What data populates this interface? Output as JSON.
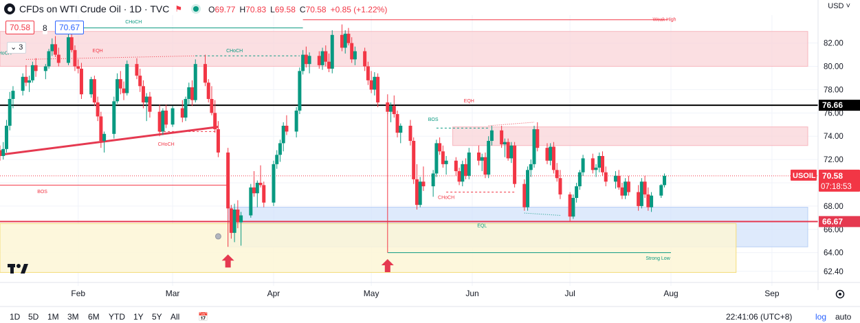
{
  "header": {
    "title": "CFDs on WTI Crude Oil · 1D · TVC",
    "ohlc": [
      {
        "k": "O",
        "v": "69.77"
      },
      {
        "k": "H",
        "v": "70.83"
      },
      {
        "k": "L",
        "v": "69.58"
      },
      {
        "k": "C",
        "v": "70.58"
      },
      {
        "k": "",
        "v": "+0.85 (+1.22%)"
      }
    ],
    "sell_price": "70.58",
    "spread": "8",
    "buy_price": "70.67",
    "layers_count": "3",
    "currency": "USD"
  },
  "colors": {
    "up": "#089981",
    "down": "#f23645",
    "supply_zone": "#f9d4d8",
    "demand_zone": "#d3e3fb",
    "yellow_zone": "#fdf6d6",
    "black_line": "#000000",
    "red_line": "#e53950"
  },
  "bottom_bar": {
    "timeframes": [
      "1D",
      "5D",
      "1M",
      "3M",
      "6M",
      "YTD",
      "1Y",
      "5Y",
      "All"
    ],
    "clock": "22:41:06 (UTC+8)",
    "log": "log",
    "auto": "auto"
  },
  "chart_data": {
    "type": "candlestick",
    "title": "CFDs on WTI Crude Oil · 1D · TVC",
    "symbol": "USOIL",
    "y_ticks": [
      62.4,
      64.0,
      66.0,
      68.0,
      70.0,
      72.0,
      74.0,
      76.0,
      78.0,
      80.0,
      82.0
    ],
    "x_ticks": [
      "Feb",
      "Mar",
      "Apr",
      "May",
      "Jun",
      "Jul",
      "Aug",
      "Sep"
    ],
    "x_tick_dates": [
      "2024-02-01",
      "2024-03-01",
      "2024-04-01",
      "2024-05-01",
      "2024-06-01",
      "2024-07-01",
      "2024-08-01",
      "2024-09-01"
    ],
    "x_range": [
      "2024-01-08",
      "2024-09-12"
    ],
    "y_range": [
      61.5,
      84.4
    ],
    "price_labels": {
      "last_price": "70.58",
      "countdown": "07:18:53",
      "black_level": "76.66",
      "red_level": "66.67"
    },
    "levels": [
      {
        "label": "76.66",
        "value": 76.66,
        "color": "#000000"
      },
      {
        "label": "66.67",
        "value": 66.67,
        "color": "#e53950"
      }
    ],
    "zones": [
      {
        "kind": "supply",
        "from": "2024-01-08",
        "to": "2024-09-12",
        "low": 80.0,
        "high": 83.0
      },
      {
        "kind": "supply",
        "from": "2024-05-26",
        "to": "2024-09-12",
        "low": 73.2,
        "high": 74.8
      },
      {
        "kind": "demand",
        "from": "2024-03-18",
        "to": "2024-09-12",
        "low": 64.5,
        "high": 67.9
      },
      {
        "kind": "yellow",
        "from": "2024-01-08",
        "to": "2024-08-21",
        "low": 62.3,
        "high": 66.5
      }
    ],
    "annotations": [
      {
        "text": "CHoCH",
        "date": "2024-02-18",
        "value": 83.7,
        "color": "#089981"
      },
      {
        "text": "EQH",
        "date": "2024-02-07",
        "value": 81.2,
        "color": "#f23645"
      },
      {
        "text": "CHoCH",
        "date": "2024-03-20",
        "value": 81.2,
        "color": "#089981"
      },
      {
        "text": "Weak High",
        "date": "2024-07-30",
        "value": 83.9,
        "color": "#f23645"
      },
      {
        "text": "CHoCH",
        "date": "2024-02-28",
        "value": 73.2,
        "color": "#f23645"
      },
      {
        "text": "BOS",
        "date": "2024-01-21",
        "value": 69.1,
        "color": "#f23645"
      },
      {
        "text": "BOS",
        "date": "2024-05-20",
        "value": 75.3,
        "color": "#089981"
      },
      {
        "text": "EQH",
        "date": "2024-05-31",
        "value": 76.9,
        "color": "#f23645"
      },
      {
        "text": "CHoCH",
        "date": "2024-05-24",
        "value": 68.6,
        "color": "#f23645"
      },
      {
        "text": "EQL",
        "date": "2024-06-04",
        "value": 66.2,
        "color": "#089981"
      },
      {
        "text": "Strong Low",
        "date": "2024-07-28",
        "value": 63.4,
        "color": "#089981"
      },
      {
        "text": "CHoCH",
        "date": "2024-01-09",
        "value": 81.0,
        "color": "#089981"
      }
    ],
    "arrows": [
      {
        "date": "2024-03-18",
        "value": 63.2
      },
      {
        "date": "2024-05-06",
        "value": 62.8
      }
    ],
    "trendlines": [
      {
        "points": [
          [
            "2024-01-08",
            72.4
          ],
          [
            "2024-03-15",
            74.8
          ]
        ],
        "color": "#e53950"
      }
    ],
    "candles": [
      [
        "2024-01-08",
        72.8,
        73.2,
        71.9,
        72.3
      ],
      [
        "2024-01-09",
        72.3,
        73.5,
        72.0,
        72.9
      ],
      [
        "2024-01-10",
        72.9,
        75.4,
        72.6,
        74.9
      ],
      [
        "2024-01-11",
        74.9,
        77.8,
        74.5,
        77.2
      ],
      [
        "2024-01-12",
        77.2,
        78.3,
        76.4,
        77.9
      ],
      [
        "2024-01-15",
        77.9,
        79.4,
        77.5,
        79.1
      ],
      [
        "2024-01-16",
        79.1,
        80.1,
        78.3,
        78.6
      ],
      [
        "2024-01-17",
        78.6,
        79.2,
        77.8,
        78.8
      ],
      [
        "2024-01-18",
        78.8,
        80.4,
        78.6,
        80.1
      ],
      [
        "2024-01-19",
        80.1,
        80.7,
        79.1,
        79.6
      ],
      [
        "2024-01-22",
        79.6,
        80.2,
        78.9,
        80.0
      ],
      [
        "2024-01-23",
        80.0,
        81.5,
        79.8,
        81.3
      ],
      [
        "2024-01-24",
        81.3,
        82.4,
        80.9,
        81.9
      ],
      [
        "2024-01-25",
        81.9,
        82.6,
        80.8,
        81.0
      ],
      [
        "2024-01-26",
        81.0,
        81.6,
        80.0,
        80.3
      ],
      [
        "2024-01-29",
        80.3,
        82.9,
        80.1,
        82.5
      ],
      [
        "2024-01-30",
        82.5,
        82.8,
        81.2,
        81.4
      ],
      [
        "2024-01-31",
        81.4,
        81.8,
        79.6,
        80.0
      ],
      [
        "2024-02-01",
        80.0,
        80.6,
        79.4,
        79.8
      ],
      [
        "2024-02-02",
        79.8,
        80.3,
        77.2,
        77.6
      ],
      [
        "2024-02-05",
        77.6,
        79.1,
        77.3,
        78.9
      ],
      [
        "2024-02-06",
        78.9,
        79.2,
        76.6,
        76.9
      ],
      [
        "2024-02-07",
        76.9,
        77.4,
        75.3,
        75.7
      ],
      [
        "2024-02-08",
        75.7,
        76.1,
        73.0,
        73.6
      ],
      [
        "2024-02-09",
        73.6,
        74.4,
        72.6,
        74.2
      ],
      [
        "2024-02-12",
        74.2,
        77.4,
        73.8,
        77.0
      ],
      [
        "2024-02-13",
        77.0,
        79.4,
        76.8,
        78.9
      ],
      [
        "2024-02-14",
        78.9,
        79.6,
        77.6,
        78.1
      ],
      [
        "2024-02-15",
        78.1,
        78.7,
        77.1,
        77.7
      ],
      [
        "2024-02-16",
        77.7,
        80.5,
        77.5,
        80.2
      ],
      [
        "2024-02-19",
        80.2,
        80.7,
        78.9,
        79.2
      ],
      [
        "2024-02-20",
        79.2,
        79.8,
        77.8,
        78.3
      ],
      [
        "2024-02-21",
        78.3,
        78.8,
        76.4,
        76.9
      ],
      [
        "2024-02-22",
        76.9,
        77.7,
        75.3,
        77.4
      ],
      [
        "2024-02-23",
        77.4,
        77.8,
        75.6,
        76.1
      ],
      [
        "2024-02-26",
        76.1,
        76.7,
        74.0,
        74.4
      ],
      [
        "2024-02-27",
        74.4,
        76.4,
        74.1,
        76.2
      ],
      [
        "2024-02-28",
        76.2,
        76.7,
        74.7,
        75.0
      ],
      [
        "2024-03-01",
        75.0,
        76.6,
        74.8,
        76.4
      ],
      [
        "2024-03-04",
        76.4,
        77.1,
        75.2,
        75.6
      ],
      [
        "2024-03-05",
        75.6,
        77.4,
        75.3,
        77.2
      ],
      [
        "2024-03-06",
        77.2,
        78.6,
        76.7,
        78.2
      ],
      [
        "2024-03-07",
        78.2,
        78.8,
        76.6,
        77.1
      ],
      [
        "2024-03-08",
        77.1,
        80.6,
        76.9,
        80.2
      ],
      [
        "2024-03-11",
        80.2,
        81.0,
        78.3,
        78.6
      ],
      [
        "2024-03-12",
        78.6,
        78.9,
        76.9,
        77.2
      ],
      [
        "2024-03-13",
        77.2,
        78.3,
        75.8,
        76.0
      ],
      [
        "2024-03-14",
        76.0,
        77.1,
        74.3,
        74.6
      ],
      [
        "2024-03-15",
        74.6,
        75.3,
        72.2,
        72.6
      ],
      [
        "2024-03-18",
        72.6,
        73.0,
        67.3,
        67.8
      ],
      [
        "2024-03-19",
        67.8,
        68.1,
        65.2,
        65.7
      ],
      [
        "2024-03-20",
        65.7,
        68.2,
        64.9,
        67.7
      ],
      [
        "2024-03-21",
        67.7,
        68.5,
        66.1,
        66.6
      ],
      [
        "2024-03-22",
        66.6,
        67.5,
        64.6,
        67.2
      ],
      [
        "2024-03-25",
        67.2,
        69.9,
        67.0,
        69.6
      ],
      [
        "2024-03-26",
        69.6,
        71.0,
        68.8,
        69.1
      ],
      [
        "2024-03-27",
        69.1,
        70.2,
        67.9,
        70.0
      ],
      [
        "2024-03-28",
        70.0,
        71.5,
        69.6,
        69.8
      ],
      [
        "2024-03-29",
        69.8,
        70.1,
        67.9,
        68.3
      ],
      [
        "2024-04-01",
        68.3,
        71.9,
        68.0,
        71.6
      ],
      [
        "2024-04-02",
        71.6,
        72.8,
        71.2,
        72.4
      ],
      [
        "2024-04-03",
        72.4,
        73.7,
        71.8,
        73.4
      ],
      [
        "2024-04-04",
        73.4,
        75.2,
        72.7,
        74.9
      ],
      [
        "2024-04-05",
        74.9,
        75.8,
        74.1,
        74.4
      ],
      [
        "2024-04-08",
        74.4,
        76.5,
        73.9,
        76.2
      ],
      [
        "2024-04-09",
        76.2,
        79.9,
        75.9,
        79.6
      ],
      [
        "2024-04-10",
        79.6,
        81.4,
        79.3,
        81.0
      ],
      [
        "2024-04-11",
        81.0,
        81.7,
        79.9,
        80.2
      ],
      [
        "2024-04-12",
        80.2,
        81.2,
        79.4,
        80.9
      ],
      [
        "2024-04-15",
        80.9,
        81.3,
        79.8,
        80.1
      ],
      [
        "2024-04-16",
        80.1,
        81.6,
        79.7,
        81.3
      ],
      [
        "2024-04-17",
        81.3,
        81.8,
        80.0,
        80.4
      ],
      [
        "2024-04-18",
        80.4,
        81.1,
        79.5,
        79.8
      ],
      [
        "2024-04-19",
        79.8,
        83.1,
        79.4,
        82.7
      ],
      [
        "2024-04-22",
        82.7,
        83.6,
        81.3,
        81.6
      ],
      [
        "2024-04-23",
        81.6,
        83.1,
        81.1,
        82.8
      ],
      [
        "2024-04-24",
        82.8,
        83.3,
        81.8,
        82.0
      ],
      [
        "2024-04-25",
        82.0,
        82.5,
        80.3,
        80.6
      ],
      [
        "2024-04-26",
        80.6,
        81.7,
        80.1,
        81.3
      ],
      [
        "2024-04-29",
        81.3,
        81.6,
        79.6,
        80.0
      ],
      [
        "2024-04-30",
        80.0,
        80.4,
        78.4,
        78.8
      ],
      [
        "2024-05-01",
        78.8,
        79.6,
        77.7,
        78.0
      ],
      [
        "2024-05-02",
        78.0,
        79.5,
        77.5,
        79.1
      ],
      [
        "2024-05-03",
        79.1,
        79.4,
        76.5,
        76.9
      ],
      [
        "2024-05-06",
        76.9,
        77.6,
        75.9,
        76.1
      ],
      [
        "2024-05-07",
        76.1,
        76.9,
        75.2,
        76.6
      ],
      [
        "2024-05-08",
        76.6,
        77.5,
        75.6,
        75.9
      ],
      [
        "2024-05-09",
        75.9,
        76.2,
        73.9,
        74.3
      ],
      [
        "2024-05-10",
        74.3,
        75.1,
        73.4,
        74.9
      ],
      [
        "2024-05-13",
        74.9,
        75.4,
        73.2,
        73.6
      ],
      [
        "2024-05-14",
        73.6,
        73.9,
        69.9,
        70.3
      ],
      [
        "2024-05-15",
        70.3,
        71.6,
        67.7,
        68.1
      ],
      [
        "2024-05-16",
        68.1,
        70.5,
        67.9,
        70.1
      ],
      [
        "2024-05-17",
        70.1,
        71.4,
        69.3,
        69.7
      ],
      [
        "2024-05-20",
        69.7,
        71.1,
        68.8,
        70.8
      ],
      [
        "2024-05-21",
        70.8,
        73.7,
        70.5,
        73.4
      ],
      [
        "2024-05-22",
        73.4,
        73.9,
        72.4,
        72.7
      ],
      [
        "2024-05-23",
        72.7,
        73.2,
        71.3,
        71.6
      ],
      [
        "2024-05-24",
        71.6,
        72.3,
        70.7,
        71.9
      ],
      [
        "2024-05-27",
        71.9,
        72.2,
        70.6,
        71.0
      ],
      [
        "2024-05-28",
        71.0,
        71.3,
        69.8,
        70.1
      ],
      [
        "2024-05-29",
        70.1,
        71.9,
        69.7,
        71.6
      ],
      [
        "2024-05-30",
        71.6,
        72.1,
        70.3,
        70.6
      ],
      [
        "2024-05-31",
        70.6,
        73.0,
        70.3,
        72.6
      ],
      [
        "2024-06-03",
        72.6,
        73.2,
        71.5,
        71.9
      ],
      [
        "2024-06-04",
        71.9,
        72.5,
        71.0,
        72.2
      ],
      [
        "2024-06-05",
        72.2,
        72.6,
        70.4,
        70.7
      ],
      [
        "2024-06-06",
        70.7,
        74.0,
        70.4,
        73.6
      ],
      [
        "2024-06-07",
        73.6,
        74.9,
        73.2,
        74.5
      ],
      [
        "2024-06-10",
        74.5,
        74.9,
        73.0,
        73.3
      ],
      [
        "2024-06-11",
        73.3,
        73.8,
        72.2,
        73.5
      ],
      [
        "2024-06-12",
        73.5,
        73.8,
        71.9,
        72.1
      ],
      [
        "2024-06-13",
        72.1,
        73.5,
        71.7,
        73.2
      ],
      [
        "2024-06-14",
        73.2,
        73.5,
        69.6,
        69.9
      ],
      [
        "2024-06-17",
        69.9,
        70.3,
        67.6,
        67.9
      ],
      [
        "2024-06-18",
        67.9,
        71.4,
        67.6,
        71.1
      ],
      [
        "2024-06-19",
        71.1,
        72.0,
        70.5,
        71.6
      ],
      [
        "2024-06-20",
        71.6,
        74.9,
        71.3,
        74.6
      ],
      [
        "2024-06-21",
        74.6,
        75.2,
        72.7,
        73.0
      ],
      [
        "2024-06-24",
        73.0,
        73.4,
        71.6,
        71.9
      ],
      [
        "2024-06-25",
        71.9,
        73.4,
        71.5,
        73.1
      ],
      [
        "2024-06-26",
        73.1,
        73.5,
        70.8,
        71.1
      ],
      [
        "2024-06-27",
        71.1,
        71.7,
        70.1,
        70.4
      ],
      [
        "2024-06-28",
        70.4,
        71.1,
        68.6,
        69.0
      ],
      [
        "2024-07-01",
        69.0,
        69.2,
        66.7,
        67.1
      ],
      [
        "2024-07-02",
        67.1,
        69.0,
        66.9,
        68.7
      ],
      [
        "2024-07-03",
        68.7,
        70.0,
        68.3,
        69.7
      ],
      [
        "2024-07-04",
        69.7,
        71.1,
        69.4,
        70.9
      ],
      [
        "2024-07-05",
        70.9,
        72.4,
        70.6,
        72.1
      ],
      [
        "2024-07-08",
        72.1,
        72.5,
        70.8,
        71.1
      ],
      [
        "2024-07-09",
        71.1,
        71.6,
        70.5,
        71.3
      ],
      [
        "2024-07-10",
        71.3,
        72.6,
        70.9,
        72.3
      ],
      [
        "2024-07-11",
        72.3,
        72.7,
        70.6,
        70.9
      ],
      [
        "2024-07-12",
        70.9,
        71.4,
        69.7,
        70.1
      ],
      [
        "2024-07-15",
        70.1,
        71.0,
        69.5,
        70.6
      ],
      [
        "2024-07-16",
        70.6,
        71.1,
        69.4,
        69.6
      ],
      [
        "2024-07-17",
        69.6,
        70.0,
        68.6,
        68.9
      ],
      [
        "2024-07-18",
        68.9,
        70.4,
        68.6,
        70.1
      ],
      [
        "2024-07-19",
        70.1,
        70.6,
        68.9,
        69.2
      ],
      [
        "2024-07-22",
        69.2,
        69.8,
        67.6,
        68.0
      ],
      [
        "2024-07-23",
        68.0,
        70.4,
        67.8,
        70.1
      ],
      [
        "2024-07-24",
        70.1,
        70.6,
        68.7,
        69.0
      ],
      [
        "2024-07-25",
        69.0,
        69.6,
        67.6,
        67.9
      ],
      [
        "2024-07-26",
        67.9,
        69.2,
        67.5,
        68.9
      ],
      [
        "2024-07-29",
        68.9,
        69.9,
        68.7,
        69.8
      ],
      [
        "2024-07-30",
        69.8,
        70.8,
        69.6,
        70.6
      ]
    ]
  }
}
